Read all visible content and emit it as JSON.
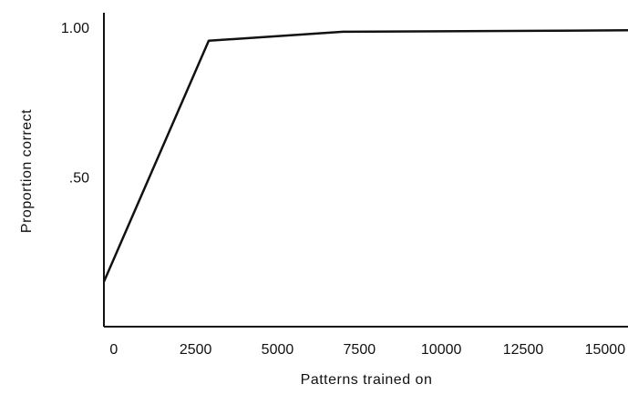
{
  "chart_data": {
    "type": "line",
    "title": "",
    "xlabel": "Patterns trained on",
    "ylabel": "Proportion correct",
    "xlim": [
      -300,
      15700
    ],
    "ylim": [
      0.0,
      1.0
    ],
    "x_ticks": [
      {
        "value": 0,
        "label": "0"
      },
      {
        "value": 2500,
        "label": "2500"
      },
      {
        "value": 5000,
        "label": "5000"
      },
      {
        "value": 7500,
        "label": "7500"
      },
      {
        "value": 10000,
        "label": "10000"
      },
      {
        "value": 12500,
        "label": "12500"
      },
      {
        "value": 15000,
        "label": "15000"
      }
    ],
    "y_ticks": [
      {
        "value": 0.5,
        "label": ".50"
      },
      {
        "value": 1.0,
        "label": "1.00"
      }
    ],
    "grid": false,
    "series": [
      {
        "x": [
          -300,
          2900,
          7000,
          15700
        ],
        "y": [
          0.15,
          0.955,
          0.985,
          0.99
        ]
      }
    ]
  }
}
